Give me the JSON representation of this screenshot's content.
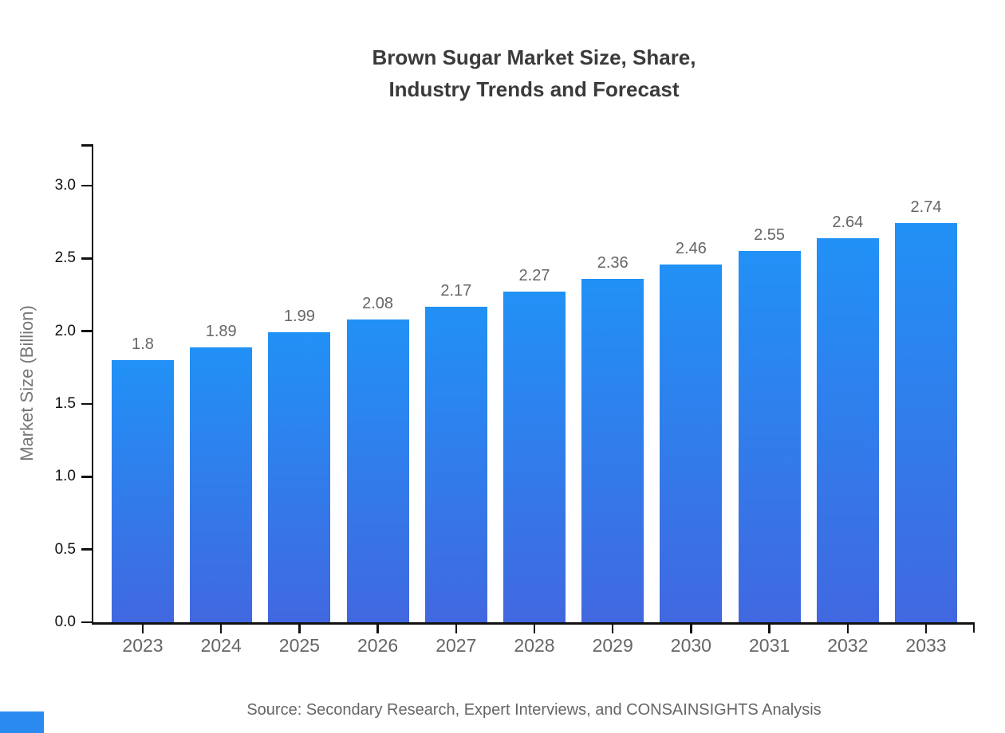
{
  "title": {
    "line1": "Brown Sugar Market Size, Share,",
    "line2": "Industry Trends and Forecast"
  },
  "source_note": "Source: Secondary Research, Expert Interviews, and CONSAINSIGHTS Analysis",
  "colors": {
    "background": "#ffffff",
    "title_text": "#3b3b3b",
    "axis_line": "#111111",
    "y_tick_text": "#111111",
    "x_tick_text": "#666666",
    "value_label_text": "#666666",
    "y_axis_title_text": "#767676",
    "source_text": "#666666",
    "brand_blue": "#2b8af0"
  },
  "chart_data": {
    "type": "bar",
    "title": "Brown Sugar Market Size, Share, Industry Trends and Forecast",
    "categories": [
      "2023",
      "2024",
      "2025",
      "2026",
      "2027",
      "2028",
      "2029",
      "2030",
      "2031",
      "2032",
      "2033"
    ],
    "values": [
      1.8,
      1.89,
      1.99,
      2.08,
      2.17,
      2.27,
      2.36,
      2.46,
      2.55,
      2.64,
      2.74
    ],
    "value_labels": [
      "1.8",
      "1.89",
      "1.99",
      "2.08",
      "2.17",
      "2.27",
      "2.36",
      "2.46",
      "2.55",
      "2.64",
      "2.74"
    ],
    "xlabel": "",
    "ylabel": "Market Size (Billion)",
    "ylim": [
      0,
      3.2
    ],
    "y_ticks": [
      0.0,
      0.5,
      1.0,
      1.5,
      2.0,
      2.5,
      3.0
    ],
    "y_tick_labels": [
      "0.0",
      "0.5",
      "1.0",
      "1.5",
      "2.0",
      "2.5",
      "3.0"
    ],
    "grid": false,
    "legend": "none",
    "bar_color_top": "#2191f6",
    "bar_color_bottom": "#4168e0"
  }
}
